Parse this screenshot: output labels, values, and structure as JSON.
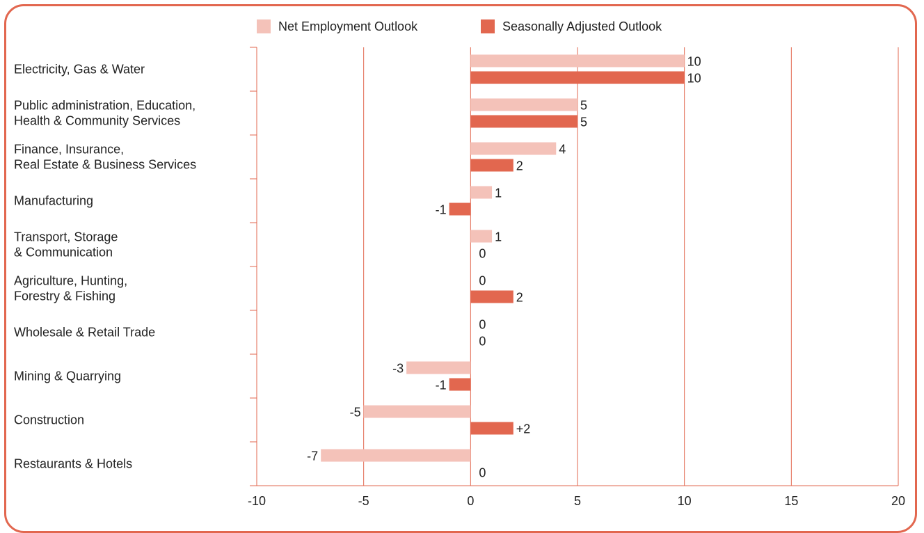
{
  "chart_data": {
    "type": "bar",
    "orientation": "horizontal",
    "categories": [
      [
        "Electricity, Gas & Water"
      ],
      [
        "Public administration, Education,",
        "Health & Community Services"
      ],
      [
        "Finance, Insurance,",
        "Real Estate & Business Services"
      ],
      [
        "Manufacturing"
      ],
      [
        "Transport, Storage",
        "& Communication"
      ],
      [
        "Agriculture, Hunting,",
        "Forestry & Fishing"
      ],
      [
        "Wholesale & Retail Trade"
      ],
      [
        "Mining & Quarrying"
      ],
      [
        "Construction"
      ],
      [
        "Restaurants & Hotels"
      ]
    ],
    "series": [
      {
        "name": "Net Employment Outlook",
        "color": "#f4c2b9",
        "values": [
          10,
          5,
          4,
          1,
          1,
          0,
          0,
          -3,
          -5,
          -7
        ],
        "labels": [
          "10",
          "5",
          "4",
          "1",
          "1",
          "0",
          "0",
          "-3",
          "-5",
          "-7"
        ]
      },
      {
        "name": "Seasonally Adjusted Outlook",
        "color": "#e2674f",
        "values": [
          10,
          5,
          2,
          -1,
          0,
          2,
          0,
          -1,
          2,
          0
        ],
        "labels": [
          "10",
          "5",
          "2",
          "-1",
          "0",
          "2",
          "0",
          "-1",
          "+2",
          "0"
        ]
      }
    ],
    "xlim": [
      -10,
      20
    ],
    "xticks": [
      -10,
      -5,
      0,
      5,
      10,
      15,
      20
    ],
    "grid": true,
    "legend_position": "top-center",
    "axis_color": "#e2674f",
    "title": "",
    "xlabel": "",
    "ylabel": ""
  }
}
